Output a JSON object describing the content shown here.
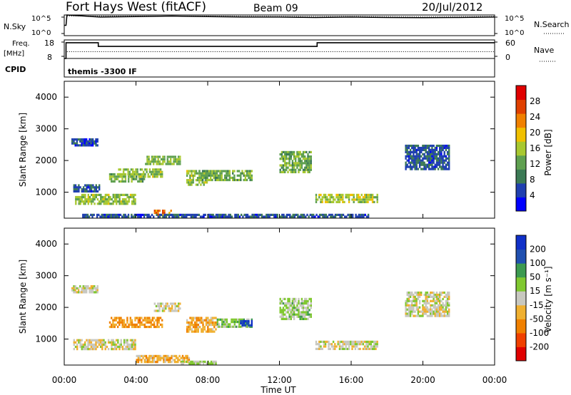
{
  "header": {
    "station": "Fort Hays West (fitACF)",
    "beam": "Beam 09",
    "date": "20/Jul/2012"
  },
  "noise_panel": {
    "left_label": "N.Sky",
    "right_label": "N.Search",
    "left_ticks": [
      "10^5",
      "10^0"
    ],
    "right_ticks": [
      "10^5",
      "10^0"
    ]
  },
  "freq_panel": {
    "left_label_1": "Freq.",
    "left_label_2": "[MHz]",
    "right_label": "Nave",
    "left_ticks": [
      "18",
      "8"
    ],
    "right_ticks": [
      "60",
      "0"
    ]
  },
  "cpid": {
    "label": "CPID",
    "value": "themis -3300 IF"
  },
  "power_panel": {
    "ylabel": "Slant Range [km]",
    "yticks": [
      "4000",
      "3000",
      "2000",
      "1000"
    ],
    "colorbar_label": "Power [dB]",
    "colorbar_ticks": [
      "28",
      "24",
      "20",
      "16",
      "12",
      "8",
      "4"
    ]
  },
  "velocity_panel": {
    "ylabel": "Slant Range [km]",
    "yticks": [
      "4000",
      "3000",
      "2000",
      "1000"
    ],
    "colorbar_label": "Velocity [m s⁻¹]",
    "colorbar_ticks": [
      "200",
      "100",
      "50",
      "15",
      "-15",
      "-50",
      "-100",
      "-200"
    ]
  },
  "xaxis": {
    "label": "Time UT",
    "ticks": [
      "00:00",
      "04:00",
      "08:00",
      "12:00",
      "16:00",
      "20:00",
      "00:00"
    ]
  },
  "colors": {
    "power_scale": [
      "#0000ff",
      "#2040b0",
      "#3c7a55",
      "#5fa050",
      "#a8c830",
      "#f0c000",
      "#f08000",
      "#e04000",
      "#e00000"
    ],
    "velocity_scale": [
      "#e00000",
      "#f04000",
      "#f08000",
      "#f0b030",
      "#c8c8c0",
      "#80c830",
      "#3c9a50",
      "#2050b0",
      "#1030c8"
    ]
  },
  "chart_data": [
    {
      "type": "line",
      "title": "N.Sky / N.Search",
      "x_unit": "hours UT",
      "xlim": [
        0,
        24
      ],
      "series": [
        {
          "name": "N.Sky",
          "style": "solid",
          "x": [
            0,
            0.1,
            0.15,
            2,
            4,
            6,
            8,
            10,
            12,
            14,
            16,
            18,
            20,
            22,
            24
          ],
          "values": [
            0.5,
            0.5,
            1.0,
            0.9,
            0.92,
            0.95,
            0.92,
            0.9,
            0.9,
            0.88,
            0.9,
            0.88,
            0.87,
            0.88,
            0.9
          ]
        },
        {
          "name": "N.Search",
          "style": "dotted",
          "x": [
            0.15,
            4,
            8,
            12,
            16,
            20,
            24
          ],
          "values": [
            0.95,
            0.95,
            0.95,
            0.93,
            0.93,
            0.92,
            0.93
          ]
        }
      ]
    },
    {
      "type": "line",
      "title": "Freq. [MHz] / Nave",
      "x_unit": "hours UT",
      "xlim": [
        0,
        24
      ],
      "series": [
        {
          "name": "Freq.",
          "unit": "MHz",
          "ylim": [
            8,
            18
          ],
          "style": "solid",
          "x": [
            0,
            0.1,
            0.1,
            1.9,
            1.9,
            14.1,
            14.1,
            24
          ],
          "values": [
            8,
            8,
            16.5,
            16.5,
            14.5,
            14.5,
            16.5,
            16.5
          ]
        },
        {
          "name": "Nave",
          "ylim": [
            0,
            60
          ],
          "style": "dotted",
          "x": [
            0.15,
            24
          ],
          "values": [
            22,
            22
          ]
        }
      ]
    },
    {
      "type": "heatmap",
      "title": "Power [dB]",
      "x_unit": "hours UT",
      "xlim": [
        0,
        24
      ],
      "ylabel": "Slant Range [km]",
      "ylim": [
        180,
        4500
      ],
      "zlim": [
        0,
        30
      ],
      "clusters": [
        {
          "t0": 0.4,
          "t1": 1.9,
          "r0": 2450,
          "r1": 2700,
          "z": 5
        },
        {
          "t0": 0.5,
          "t1": 2.0,
          "r0": 1000,
          "r1": 1250,
          "z": 6
        },
        {
          "t0": 0.6,
          "t1": 4.0,
          "r0": 600,
          "r1": 950,
          "z": 14
        },
        {
          "t0": 2.5,
          "t1": 4.5,
          "r0": 1300,
          "r1": 1600,
          "z": 12
        },
        {
          "t0": 3.0,
          "t1": 5.5,
          "r0": 1450,
          "r1": 1750,
          "z": 14
        },
        {
          "t0": 4.5,
          "t1": 6.5,
          "r0": 1850,
          "r1": 2150,
          "z": 13
        },
        {
          "t0": 5.0,
          "t1": 6.0,
          "r0": 250,
          "r1": 450,
          "z": 22
        },
        {
          "t0": 6.8,
          "t1": 8.0,
          "r0": 1200,
          "r1": 1700,
          "z": 14
        },
        {
          "t0": 7.5,
          "t1": 10.5,
          "r0": 1350,
          "r1": 1700,
          "z": 12
        },
        {
          "t0": 12.0,
          "t1": 13.8,
          "r0": 1600,
          "r1": 2300,
          "z": 12
        },
        {
          "t0": 14.0,
          "t1": 17.5,
          "r0": 650,
          "r1": 950,
          "z": 15
        },
        {
          "t0": 19.0,
          "t1": 21.5,
          "r0": 1700,
          "r1": 2500,
          "z": 6
        },
        {
          "t0": 1.0,
          "t1": 17.0,
          "r0": 200,
          "r1": 320,
          "z": 6
        }
      ]
    },
    {
      "type": "heatmap",
      "title": "Velocity [m s⁻¹]",
      "x_unit": "hours UT",
      "xlim": [
        0,
        24
      ],
      "ylabel": "Slant Range [km]",
      "ylim": [
        180,
        4500
      ],
      "zlim": [
        -250,
        250
      ],
      "clusters": [
        {
          "t0": 0.4,
          "t1": 1.9,
          "r0": 2450,
          "r1": 2700,
          "z": 0
        },
        {
          "t0": 0.5,
          "t1": 4.0,
          "r0": 650,
          "r1": 1000,
          "z": 0
        },
        {
          "t0": 2.5,
          "t1": 5.5,
          "r0": 1350,
          "r1": 1700,
          "z": -90
        },
        {
          "t0": 5.0,
          "t1": 6.5,
          "r0": 1850,
          "r1": 2150,
          "z": 0
        },
        {
          "t0": 4.0,
          "t1": 7.0,
          "r0": 250,
          "r1": 500,
          "z": -60
        },
        {
          "t0": 6.8,
          "t1": 8.5,
          "r0": 1200,
          "r1": 1700,
          "z": -70
        },
        {
          "t0": 8.5,
          "t1": 10.5,
          "r0": 1350,
          "r1": 1650,
          "z": 60
        },
        {
          "t0": 9.8,
          "t1": 10.5,
          "r0": 1400,
          "r1": 1600,
          "z": 200
        },
        {
          "t0": 12.0,
          "t1": 13.8,
          "r0": 1600,
          "r1": 2300,
          "z": 40
        },
        {
          "t0": 14.0,
          "t1": 17.5,
          "r0": 650,
          "r1": 950,
          "z": 0
        },
        {
          "t0": 19.0,
          "t1": 21.5,
          "r0": 1700,
          "r1": 2500,
          "z": 0
        },
        {
          "t0": 6.5,
          "t1": 8.5,
          "r0": 200,
          "r1": 320,
          "z": 30
        }
      ]
    }
  ]
}
